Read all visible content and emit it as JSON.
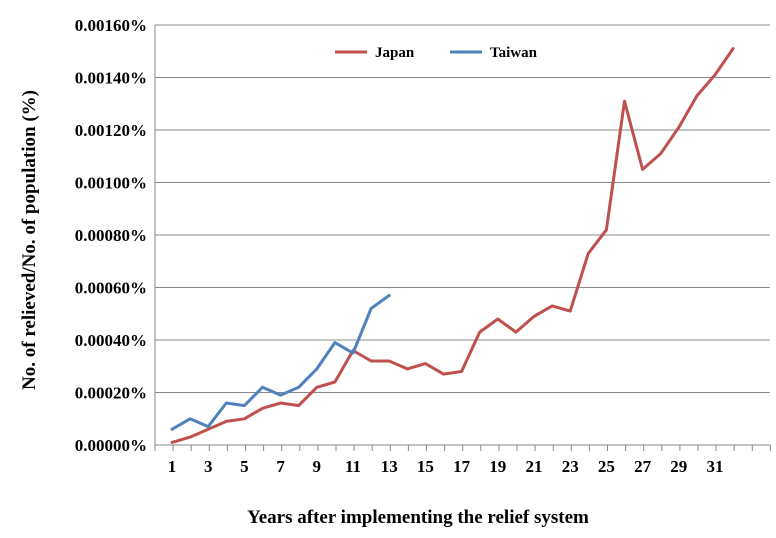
{
  "chart_data": {
    "type": "line",
    "title": "",
    "xlabel": "Years after implementing the relief system",
    "ylabel": "No. of relieved/No. of population (%)",
    "ylim": [
      0,
      0.0016
    ],
    "y_tick_labels": [
      "0.00000%",
      "0.00020%",
      "0.00040%",
      "0.00060%",
      "0.00080%",
      "0.00100%",
      "0.00120%",
      "0.00140%",
      "0.00160%"
    ],
    "x_tick_labels": [
      "1",
      "3",
      "5",
      "7",
      "9",
      "11",
      "13",
      "15",
      "17",
      "19",
      "21",
      "23",
      "25",
      "27",
      "29",
      "31"
    ],
    "x_tick_values": [
      1,
      3,
      5,
      7,
      9,
      11,
      13,
      15,
      17,
      19,
      21,
      23,
      25,
      27,
      29,
      31
    ],
    "xlim": [
      1,
      32
    ],
    "grid": "horizontal",
    "legend_position": "top",
    "series": [
      {
        "name": "Japan",
        "color": "#C0504D",
        "x": [
          1,
          2,
          3,
          4,
          5,
          6,
          7,
          8,
          9,
          10,
          11,
          12,
          13,
          14,
          15,
          16,
          17,
          18,
          19,
          20,
          21,
          22,
          23,
          24,
          25,
          26,
          27,
          28,
          29,
          30,
          31,
          32
        ],
        "values": [
          1e-05,
          3e-05,
          6e-05,
          9e-05,
          0.0001,
          0.00014,
          0.00016,
          0.00015,
          0.00022,
          0.00024,
          0.00036,
          0.00032,
          0.00032,
          0.00029,
          0.00031,
          0.00027,
          0.00028,
          0.00043,
          0.00048,
          0.00043,
          0.00049,
          0.00053,
          0.00051,
          0.00073,
          0.00082,
          0.00131,
          0.00105,
          0.00111,
          0.00121,
          0.00133,
          0.00141,
          0.00151
        ]
      },
      {
        "name": "Taiwan",
        "color": "#4F81BD",
        "x": [
          1,
          2,
          3,
          4,
          5,
          6,
          7,
          8,
          9,
          10,
          11,
          12,
          13
        ],
        "values": [
          6e-05,
          0.0001,
          7e-05,
          0.00016,
          0.00015,
          0.00022,
          0.00019,
          0.00022,
          0.00029,
          0.00039,
          0.00035,
          0.00052,
          0.00057
        ]
      }
    ]
  }
}
